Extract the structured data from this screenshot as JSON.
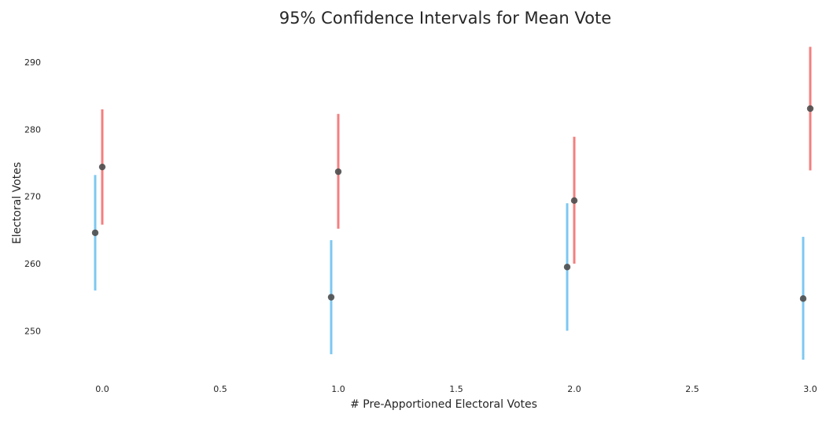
{
  "chart_data": {
    "type": "scatter",
    "title": "95% Confidence Intervals for Mean Vote",
    "xlabel": "# Pre-Apportioned Electoral Votes",
    "ylabel": "Electoral Votes",
    "xlim": [
      -0.25,
      3.05
    ],
    "ylim": [
      243,
      294
    ],
    "xticks": [
      "0.0",
      "0.5",
      "1.0",
      "1.5",
      "2.0",
      "2.5",
      "3.0"
    ],
    "xtick_values": [
      0,
      0.5,
      1,
      1.5,
      2,
      2.5,
      3
    ],
    "yticks": [
      "250",
      "260",
      "270",
      "280",
      "290"
    ],
    "ytick_values": [
      250,
      260,
      270,
      280,
      290
    ],
    "grid": false,
    "series": [
      {
        "color": "#7ec8f0",
        "points": [
          {
            "x": -0.03,
            "mean": 264.6,
            "low": 256.0,
            "high": 273.2
          },
          {
            "x": 0.97,
            "mean": 255.0,
            "low": 246.5,
            "high": 263.5
          },
          {
            "x": 1.97,
            "mean": 259.5,
            "low": 250.0,
            "high": 269.0
          },
          {
            "x": 2.97,
            "mean": 254.8,
            "low": 245.7,
            "high": 264.0
          }
        ]
      },
      {
        "color": "#f47f7f",
        "points": [
          {
            "x": 0.0,
            "mean": 274.4,
            "low": 265.8,
            "high": 283.0
          },
          {
            "x": 1.0,
            "mean": 273.7,
            "low": 265.2,
            "high": 282.3
          },
          {
            "x": 2.0,
            "mean": 269.4,
            "low": 260.0,
            "high": 278.9
          },
          {
            "x": 3.0,
            "mean": 283.1,
            "low": 273.9,
            "high": 292.3
          }
        ]
      }
    ],
    "marker_color": "#4d4d4d"
  }
}
